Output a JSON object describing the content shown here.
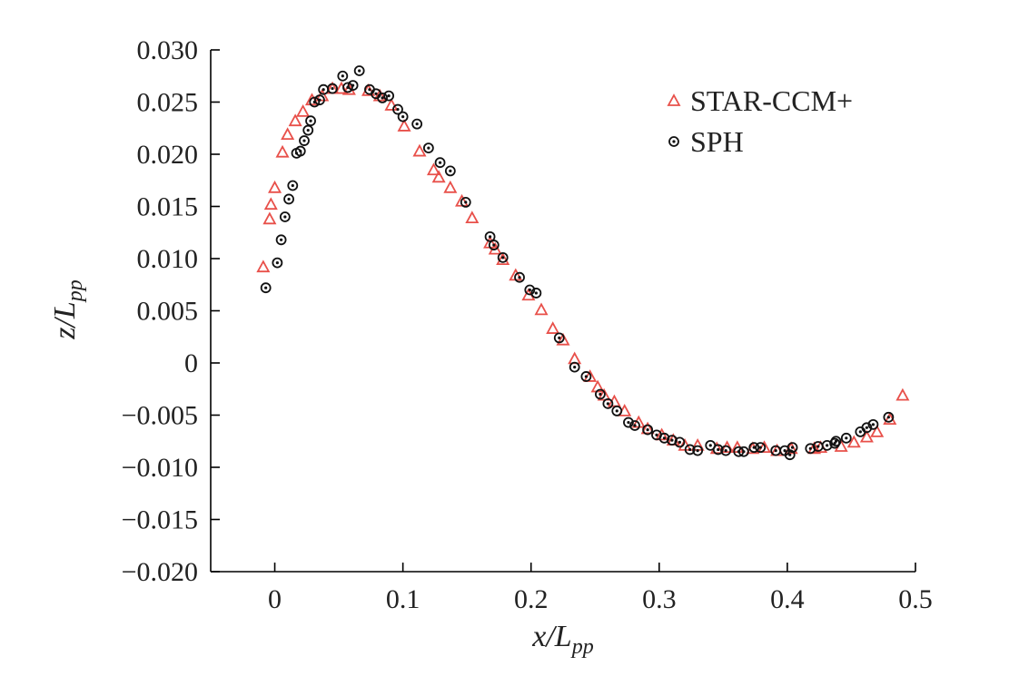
{
  "chart_data": {
    "type": "scatter",
    "title": "",
    "xlabel": "x/L_pp",
    "ylabel": "z/L_pp",
    "xlabel_parts": {
      "main": "x/L",
      "sub": "pp"
    },
    "ylabel_parts": {
      "main": "z/L",
      "sub": "pp"
    },
    "xlim": [
      -0.05,
      0.5
    ],
    "ylim": [
      -0.02,
      0.03
    ],
    "xticks": [
      0,
      0.1,
      0.2,
      0.3,
      0.4,
      0.5
    ],
    "xtick_labels": [
      "0",
      "0.1",
      "0.2",
      "0.3",
      "0.4",
      "0.5"
    ],
    "yticks": [
      0.03,
      0.025,
      0.02,
      0.015,
      0.01,
      0.005,
      0,
      -0.005,
      -0.01,
      -0.015,
      -0.02
    ],
    "ytick_labels": [
      "0.030",
      "0.025",
      "0.020",
      "0.015",
      "0.010",
      "0.005",
      "0",
      "−0.005",
      "−0.010",
      "−0.015",
      "−0.020"
    ],
    "legend_position": "top-right",
    "grid": false,
    "series": [
      {
        "name": "STAR-CCM+",
        "marker": "triangle",
        "color": "#e8504a",
        "points": [
          [
            -0.009,
            0.0092
          ],
          [
            -0.004,
            0.0138
          ],
          [
            -0.003,
            0.0152
          ],
          [
            0.0,
            0.0168
          ],
          [
            0.006,
            0.0202
          ],
          [
            0.01,
            0.0219
          ],
          [
            0.016,
            0.0232
          ],
          [
            0.022,
            0.0241
          ],
          [
            0.029,
            0.0252
          ],
          [
            0.037,
            0.0256
          ],
          [
            0.045,
            0.0263
          ],
          [
            0.052,
            0.0263
          ],
          [
            0.058,
            0.0262
          ],
          [
            0.073,
            0.0261
          ],
          [
            0.082,
            0.0256
          ],
          [
            0.091,
            0.0247
          ],
          [
            0.101,
            0.0227
          ],
          [
            0.113,
            0.0203
          ],
          [
            0.124,
            0.0185
          ],
          [
            0.128,
            0.0178
          ],
          [
            0.137,
            0.0168
          ],
          [
            0.146,
            0.0155
          ],
          [
            0.154,
            0.0139
          ],
          [
            0.168,
            0.0115
          ],
          [
            0.172,
            0.0109
          ],
          [
            0.178,
            0.0099
          ],
          [
            0.188,
            0.0084
          ],
          [
            0.198,
            0.0065
          ],
          [
            0.208,
            0.0051
          ],
          [
            0.217,
            0.0033
          ],
          [
            0.225,
            0.0022
          ],
          [
            0.234,
            0.0004
          ],
          [
            0.246,
            -0.0013
          ],
          [
            0.252,
            -0.0023
          ],
          [
            0.257,
            -0.0031
          ],
          [
            0.265,
            -0.0037
          ],
          [
            0.273,
            -0.0046
          ],
          [
            0.284,
            -0.0057
          ],
          [
            0.291,
            -0.0063
          ],
          [
            0.302,
            -0.0069
          ],
          [
            0.311,
            -0.0074
          ],
          [
            0.32,
            -0.0079
          ],
          [
            0.33,
            -0.0079
          ],
          [
            0.345,
            -0.0082
          ],
          [
            0.353,
            -0.0081
          ],
          [
            0.361,
            -0.0081
          ],
          [
            0.373,
            -0.0082
          ],
          [
            0.382,
            -0.0081
          ],
          [
            0.392,
            -0.0084
          ],
          [
            0.403,
            -0.0082
          ],
          [
            0.421,
            -0.0082
          ],
          [
            0.426,
            -0.0081
          ],
          [
            0.442,
            -0.008
          ],
          [
            0.452,
            -0.0076
          ],
          [
            0.462,
            -0.0071
          ],
          [
            0.47,
            -0.0066
          ],
          [
            0.48,
            -0.0054
          ],
          [
            0.49,
            -0.0031
          ]
        ]
      },
      {
        "name": "SPH",
        "marker": "circle-dot",
        "color": "#111111",
        "points": [
          [
            -0.007,
            0.0072
          ],
          [
            0.002,
            0.0096
          ],
          [
            0.005,
            0.0118
          ],
          [
            0.008,
            0.014
          ],
          [
            0.011,
            0.0157
          ],
          [
            0.014,
            0.017
          ],
          [
            0.017,
            0.0201
          ],
          [
            0.02,
            0.0203
          ],
          [
            0.023,
            0.0213
          ],
          [
            0.026,
            0.0223
          ],
          [
            0.028,
            0.0232
          ],
          [
            0.031,
            0.025
          ],
          [
            0.035,
            0.0252
          ],
          [
            0.038,
            0.0262
          ],
          [
            0.045,
            0.0263
          ],
          [
            0.053,
            0.0275
          ],
          [
            0.057,
            0.0264
          ],
          [
            0.061,
            0.0266
          ],
          [
            0.066,
            0.028
          ],
          [
            0.074,
            0.0262
          ],
          [
            0.079,
            0.0258
          ],
          [
            0.084,
            0.0254
          ],
          [
            0.089,
            0.0256
          ],
          [
            0.096,
            0.0243
          ],
          [
            0.1,
            0.0236
          ],
          [
            0.111,
            0.0229
          ],
          [
            0.12,
            0.0206
          ],
          [
            0.129,
            0.0192
          ],
          [
            0.137,
            0.0184
          ],
          [
            0.149,
            0.0154
          ],
          [
            0.168,
            0.0121
          ],
          [
            0.171,
            0.0113
          ],
          [
            0.178,
            0.0101
          ],
          [
            0.191,
            0.0082
          ],
          [
            0.199,
            0.007
          ],
          [
            0.204,
            0.0067
          ],
          [
            0.222,
            0.0024
          ],
          [
            0.234,
            -0.0004
          ],
          [
            0.243,
            -0.0013
          ],
          [
            0.254,
            -0.003
          ],
          [
            0.26,
            -0.0039
          ],
          [
            0.267,
            -0.0046
          ],
          [
            0.276,
            -0.0057
          ],
          [
            0.281,
            -0.006
          ],
          [
            0.291,
            -0.0064
          ],
          [
            0.298,
            -0.0069
          ],
          [
            0.304,
            -0.0072
          ],
          [
            0.31,
            -0.0074
          ],
          [
            0.316,
            -0.0076
          ],
          [
            0.324,
            -0.0083
          ],
          [
            0.33,
            -0.0084
          ],
          [
            0.34,
            -0.0079
          ],
          [
            0.346,
            -0.0083
          ],
          [
            0.352,
            -0.0084
          ],
          [
            0.362,
            -0.0085
          ],
          [
            0.366,
            -0.0085
          ],
          [
            0.374,
            -0.0081
          ],
          [
            0.379,
            -0.0081
          ],
          [
            0.391,
            -0.0084
          ],
          [
            0.398,
            -0.0084
          ],
          [
            0.402,
            -0.0088
          ],
          [
            0.404,
            -0.0081
          ],
          [
            0.418,
            -0.0082
          ],
          [
            0.424,
            -0.008
          ],
          [
            0.431,
            -0.0079
          ],
          [
            0.437,
            -0.0077
          ],
          [
            0.438,
            -0.0075
          ],
          [
            0.446,
            -0.0072
          ],
          [
            0.457,
            -0.0066
          ],
          [
            0.462,
            -0.0062
          ],
          [
            0.467,
            -0.0059
          ],
          [
            0.479,
            -0.0052
          ]
        ]
      }
    ]
  }
}
